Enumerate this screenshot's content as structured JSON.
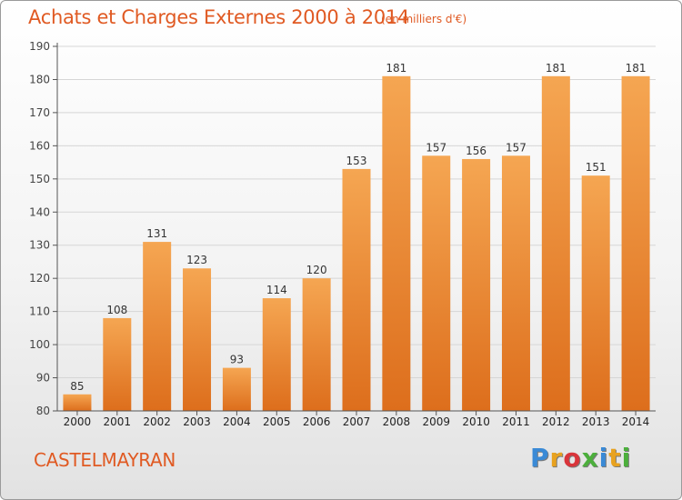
{
  "header": {
    "title": "Achats et Charges Externes 2000 à 2014",
    "subtitle": "(en milliers d'€)"
  },
  "footer": {
    "commune": "CASTELMAYRAN",
    "brand_letters": [
      "P",
      "r",
      "o",
      "x",
      "i",
      "t",
      "i"
    ],
    "brand_colors": [
      "#3a8ad6",
      "#e8a21f",
      "#d9353b",
      "#4caf3c",
      "#3a8ad6",
      "#e8a21f",
      "#4caf3c"
    ]
  },
  "colors": {
    "bar_top": "#f5a652",
    "bar_bottom": "#dd6e1c",
    "title": "#e05a23",
    "grid": "#d6d6d6"
  },
  "chart_data": {
    "type": "bar",
    "title": "Achats et Charges Externes 2000 à 2014",
    "subtitle": "(en milliers d'€)",
    "categories": [
      "2000",
      "2001",
      "2002",
      "2003",
      "2004",
      "2005",
      "2006",
      "2007",
      "2008",
      "2009",
      "2010",
      "2011",
      "2012",
      "2013",
      "2014"
    ],
    "values": [
      85,
      108,
      131,
      123,
      93,
      114,
      120,
      153,
      181,
      157,
      156,
      157,
      181,
      151,
      181
    ],
    "xlabel": "",
    "ylabel": "",
    "ylim": [
      80,
      190
    ],
    "yticks": [
      80,
      90,
      100,
      110,
      120,
      130,
      140,
      150,
      160,
      170,
      180,
      190
    ],
    "grid": true
  }
}
